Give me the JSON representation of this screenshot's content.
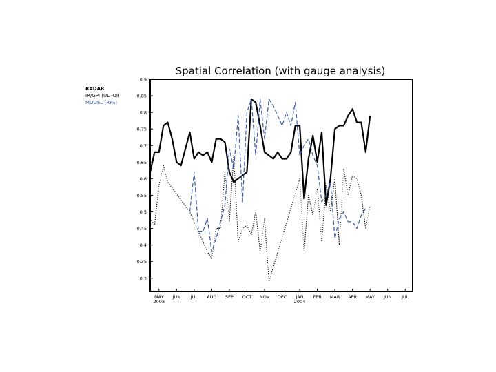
{
  "chart_data": {
    "type": "line",
    "title": "Spatial Correlation (with gauge analysis)",
    "xlabel": "",
    "ylabel": "",
    "ylim": [
      0.26,
      0.9
    ],
    "y_ticks": [
      0.3,
      0.35,
      0.4,
      0.45,
      0.5,
      0.55,
      0.6,
      0.65,
      0.7,
      0.75,
      0.8,
      0.85,
      0.9
    ],
    "y_tick_labels": [
      "0.3",
      "0.35",
      "0.4",
      "0.45",
      "0.5",
      "0.55",
      "0.6",
      "0.65",
      "0.7",
      "0.75",
      "0.8",
      "0.85",
      "0.9"
    ],
    "x_ticks": [
      {
        "label": "MAY",
        "sub": "2003",
        "x": 0.5
      },
      {
        "label": "JUN",
        "sub": "",
        "x": 1.5
      },
      {
        "label": "JUL",
        "sub": "",
        "x": 2.5
      },
      {
        "label": "AUG",
        "sub": "",
        "x": 3.5
      },
      {
        "label": "SEP",
        "sub": "",
        "x": 4.5
      },
      {
        "label": "OCT",
        "sub": "",
        "x": 5.5
      },
      {
        "label": "NOV",
        "sub": "",
        "x": 6.5
      },
      {
        "label": "DEC",
        "sub": "",
        "x": 7.5
      },
      {
        "label": "JAN",
        "sub": "2004",
        "x": 8.5
      },
      {
        "label": "FEB",
        "sub": "",
        "x": 9.5
      },
      {
        "label": "MAR",
        "sub": "",
        "x": 10.5
      },
      {
        "label": "APR",
        "sub": "",
        "x": 11.5
      },
      {
        "label": "MAY",
        "sub": "",
        "x": 12.5
      },
      {
        "label": "JUN",
        "sub": "",
        "x": 13.5
      },
      {
        "label": "JUL",
        "sub": "",
        "x": 14.5
      }
    ],
    "xlim": [
      0,
      14.92
    ],
    "legend_position": "left-top",
    "series": [
      {
        "name": "RADAR",
        "color": "#000000",
        "style": "solid-bold",
        "points": [
          [
            0.0,
            0.62
          ],
          [
            0.25,
            0.68
          ],
          [
            0.5,
            0.68
          ],
          [
            0.75,
            0.76
          ],
          [
            1.0,
            0.77
          ],
          [
            1.25,
            0.72
          ],
          [
            1.5,
            0.65
          ],
          [
            1.75,
            0.64
          ],
          [
            2.0,
            0.69
          ],
          [
            2.25,
            0.74
          ],
          [
            2.5,
            0.66
          ],
          [
            2.75,
            0.68
          ],
          [
            3.0,
            0.67
          ],
          [
            3.25,
            0.68
          ],
          [
            3.5,
            0.65
          ],
          [
            3.75,
            0.72
          ],
          [
            4.0,
            0.72
          ],
          [
            4.25,
            0.71
          ],
          [
            4.5,
            0.62
          ],
          [
            4.75,
            0.59
          ],
          [
            5.0,
            0.6
          ],
          [
            5.25,
            0.61
          ],
          [
            5.5,
            0.62
          ],
          [
            5.75,
            0.84
          ],
          [
            6.0,
            0.83
          ],
          [
            6.25,
            0.76
          ],
          [
            6.5,
            0.68
          ],
          [
            6.75,
            0.67
          ],
          [
            7.0,
            0.66
          ],
          [
            7.25,
            0.68
          ],
          [
            7.5,
            0.66
          ],
          [
            7.75,
            0.66
          ],
          [
            8.0,
            0.68
          ],
          [
            8.25,
            0.76
          ],
          [
            8.5,
            0.76
          ],
          [
            8.75,
            0.54
          ],
          [
            9.0,
            0.66
          ],
          [
            9.25,
            0.73
          ],
          [
            9.5,
            0.65
          ],
          [
            9.75,
            0.74
          ],
          [
            10.0,
            0.52
          ],
          [
            10.25,
            0.6
          ],
          [
            10.5,
            0.75
          ],
          [
            10.75,
            0.76
          ],
          [
            11.0,
            0.76
          ],
          [
            11.25,
            0.79
          ],
          [
            11.5,
            0.81
          ],
          [
            11.75,
            0.77
          ],
          [
            12.0,
            0.77
          ],
          [
            12.25,
            0.68
          ],
          [
            12.5,
            0.79
          ]
        ]
      },
      {
        "name": "IR/GPI (UL -UI)",
        "color": "#000000",
        "style": "dotted",
        "points": [
          [
            0.0,
            0.48
          ],
          [
            0.25,
            0.46
          ],
          [
            0.5,
            0.58
          ],
          [
            0.75,
            0.64
          ],
          [
            1.0,
            0.59
          ],
          [
            2.25,
            0.5
          ],
          [
            3.25,
            0.38
          ],
          [
            3.5,
            0.36
          ],
          [
            3.75,
            0.45
          ],
          [
            4.0,
            0.45
          ],
          [
            4.25,
            0.62
          ],
          [
            4.5,
            0.47
          ],
          [
            4.75,
            0.67
          ],
          [
            5.0,
            0.41
          ],
          [
            5.25,
            0.45
          ],
          [
            5.5,
            0.46
          ],
          [
            5.75,
            0.43
          ],
          [
            6.0,
            0.5
          ],
          [
            6.25,
            0.38
          ],
          [
            6.5,
            0.48
          ],
          [
            6.75,
            0.29
          ],
          [
            8.5,
            0.6
          ],
          [
            8.75,
            0.38
          ],
          [
            9.0,
            0.55
          ],
          [
            9.25,
            0.49
          ],
          [
            9.5,
            0.57
          ],
          [
            9.75,
            0.41
          ],
          [
            10.0,
            0.58
          ],
          [
            10.25,
            0.5
          ],
          [
            10.5,
            0.6
          ],
          [
            10.75,
            0.4
          ],
          [
            11.0,
            0.63
          ],
          [
            11.25,
            0.55
          ],
          [
            11.5,
            0.61
          ],
          [
            11.75,
            0.6
          ],
          [
            12.0,
            0.55
          ],
          [
            12.25,
            0.45
          ],
          [
            12.5,
            0.52
          ]
        ]
      },
      {
        "name": "MODEL (RFS)",
        "color": "#3a5aa8",
        "style": "dashed",
        "points": [
          [
            2.25,
            0.5
          ],
          [
            2.5,
            0.62
          ],
          [
            2.75,
            0.44
          ],
          [
            3.0,
            0.44
          ],
          [
            3.25,
            0.48
          ],
          [
            3.5,
            0.38
          ],
          [
            3.75,
            0.42
          ],
          [
            4.0,
            0.47
          ],
          [
            4.25,
            0.52
          ],
          [
            4.5,
            0.69
          ],
          [
            4.75,
            0.63
          ],
          [
            5.0,
            0.79
          ],
          [
            5.25,
            0.53
          ],
          [
            5.5,
            0.8
          ],
          [
            5.75,
            0.84
          ],
          [
            6.0,
            0.67
          ],
          [
            6.25,
            0.84
          ],
          [
            6.5,
            0.72
          ],
          [
            6.75,
            0.84
          ],
          [
            7.0,
            0.82
          ],
          [
            7.25,
            0.79
          ],
          [
            7.5,
            0.76
          ],
          [
            7.75,
            0.8
          ],
          [
            8.0,
            0.76
          ],
          [
            8.25,
            0.83
          ],
          [
            8.5,
            0.67
          ],
          [
            8.75,
            0.7
          ],
          [
            9.0,
            0.72
          ],
          [
            9.25,
            0.67
          ],
          [
            9.5,
            0.64
          ],
          [
            9.75,
            0.53
          ],
          [
            10.0,
            0.55
          ],
          [
            10.25,
            0.59
          ],
          [
            10.5,
            0.42
          ],
          [
            10.75,
            0.48
          ],
          [
            11.0,
            0.5
          ],
          [
            11.25,
            0.47
          ],
          [
            11.5,
            0.47
          ],
          [
            11.75,
            0.45
          ],
          [
            12.0,
            0.49
          ],
          [
            12.25,
            0.51
          ]
        ]
      }
    ]
  }
}
